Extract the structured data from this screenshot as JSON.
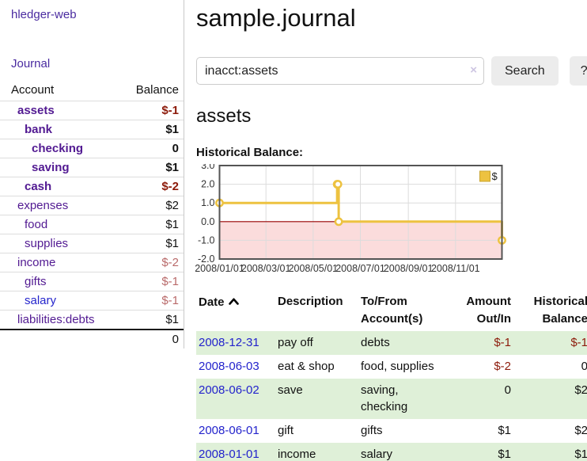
{
  "sidebar": {
    "brand": "hledger-web",
    "nav_journal": "Journal",
    "accounts_header": {
      "account": "Account",
      "balance": "Balance"
    },
    "accounts": [
      {
        "name": "assets",
        "depth": 0,
        "bold": true,
        "balance": "$-1"
      },
      {
        "name": "bank",
        "depth": 1,
        "bold": true,
        "balance": "$1"
      },
      {
        "name": "checking",
        "depth": 2,
        "bold": true,
        "balance": "0"
      },
      {
        "name": "saving",
        "depth": 2,
        "bold": true,
        "balance": "$1"
      },
      {
        "name": "cash",
        "depth": 1,
        "bold": true,
        "balance": "$-2"
      },
      {
        "name": "expenses",
        "depth": 0,
        "bold": false,
        "balance": "$2"
      },
      {
        "name": "food",
        "depth": 1,
        "bold": false,
        "balance": "$1"
      },
      {
        "name": "supplies",
        "depth": 1,
        "bold": false,
        "balance": "$1"
      },
      {
        "name": "income",
        "depth": 0,
        "bold": false,
        "balance": "$-2"
      },
      {
        "name": "gifts",
        "depth": 1,
        "bold": false,
        "balance": "$-1"
      },
      {
        "name": "salary",
        "depth": 1,
        "bold": false,
        "balance": "$-1",
        "blue": true
      },
      {
        "name": "liabilities:debts",
        "depth": 0,
        "bold": false,
        "balance": "$1"
      }
    ],
    "total": "0"
  },
  "main": {
    "title": "sample.journal",
    "search": {
      "value": "inacct:assets",
      "clear_icon": "×",
      "button": "Search",
      "help": "?"
    },
    "account_heading": "assets",
    "chart_label": "Historical Balance:"
  },
  "chart_data": {
    "type": "line",
    "step": true,
    "title": "Historical Balance",
    "ylim": [
      -2,
      3
    ],
    "x_range_days": 365,
    "y_ticks": [
      "3.0",
      "2.0",
      "1.0",
      "0.0",
      "-1.0",
      "-2.0"
    ],
    "y_tick_values": [
      3,
      2,
      1,
      0,
      -1,
      -2
    ],
    "x_ticks": [
      {
        "label": "2008/01/01",
        "day": 0
      },
      {
        "label": "2008/03/01",
        "day": 60
      },
      {
        "label": "2008/05/01",
        "day": 121
      },
      {
        "label": "2008/07/01",
        "day": 182
      },
      {
        "label": "2008/09/01",
        "day": 244
      },
      {
        "label": "2008/11/01",
        "day": 305
      }
    ],
    "series": [
      {
        "name": "$",
        "color": "#EDC240",
        "points": [
          {
            "date": "2008-01-01",
            "day": 0,
            "value": 1
          },
          {
            "date": "2008-06-01",
            "day": 152,
            "value": 2
          },
          {
            "date": "2008-06-02",
            "day": 153,
            "value": 2
          },
          {
            "date": "2008-06-03",
            "day": 154,
            "value": 0
          },
          {
            "date": "2008-12-31",
            "day": 365,
            "value": -1
          }
        ]
      }
    ],
    "legend": {
      "label": "$",
      "position": "top-right"
    },
    "grid_color": "#dcdcdc",
    "border_color": "#545454",
    "zero_line_color": "#990000",
    "negative_region_color": "#fbdcdc"
  },
  "register": {
    "headers": {
      "date": "Date",
      "description": "Description",
      "accounts": "To/From Account(s)",
      "amount": "Amount Out/In",
      "balance": "Historical Balance"
    },
    "rows": [
      {
        "date": "2008-12-31",
        "description": "pay off",
        "accounts": "debts",
        "amount": "$-1",
        "balance": "$-1"
      },
      {
        "date": "2008-06-03",
        "description": "eat & shop",
        "accounts": "food, supplies",
        "amount": "$-2",
        "balance": "0"
      },
      {
        "date": "2008-06-02",
        "description": "save",
        "accounts": "saving, checking",
        "amount": "0",
        "balance": "$2"
      },
      {
        "date": "2008-06-01",
        "description": "gift",
        "accounts": "gifts",
        "amount": "$1",
        "balance": "$2"
      },
      {
        "date": "2008-01-01",
        "description": "income",
        "accounts": "salary",
        "amount": "$1",
        "balance": "$1"
      }
    ]
  }
}
